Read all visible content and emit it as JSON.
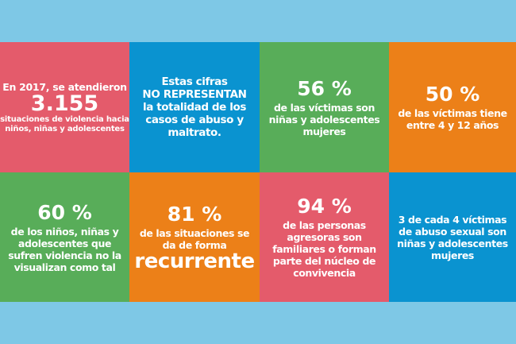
{
  "colors": {
    "background": "#7ec8e6",
    "pink": "#e45b6b",
    "blue": "#0a93d0",
    "green": "#58ad59",
    "orange": "#ec8018",
    "text": "#ffffff"
  },
  "tiles": [
    {
      "color": "pink",
      "lead": "En 2017, se atendieron",
      "figure": "3.155",
      "lines": [
        "situaciones de violencia hacia",
        "niños, niñas y adolescentes"
      ]
    },
    {
      "color": "blue",
      "lines": [
        "Estas cifras",
        "NO REPRESENTAN",
        "la totalidad de los",
        "casos de abuso y",
        "maltrato."
      ]
    },
    {
      "color": "green",
      "figure": "56 %",
      "lines": [
        "de las víctimas son",
        "niñas y adolescentes",
        "mujeres"
      ]
    },
    {
      "color": "orange",
      "figure": "50 %",
      "lines": [
        "de las víctimas tiene",
        "entre 4 y 12 años"
      ]
    },
    {
      "color": "green",
      "figure": "60 %",
      "lines": [
        "de los niños, niñas y",
        "adolescentes que",
        "sufren violencia no la",
        "visualizan como tal"
      ]
    },
    {
      "color": "orange",
      "figure": "81 %",
      "lines": [
        "de las situaciones se",
        "da de forma"
      ],
      "emphasis": "recurrente"
    },
    {
      "color": "pink",
      "figure": "94 %",
      "lines": [
        "de las personas",
        "agresoras son",
        "familiares o forman",
        "parte del núcleo de",
        "convivencia"
      ]
    },
    {
      "color": "blue",
      "lines": [
        "3 de cada 4 víctimas",
        "de abuso sexual son",
        "niñas y adolescentes",
        "mujeres"
      ]
    }
  ]
}
